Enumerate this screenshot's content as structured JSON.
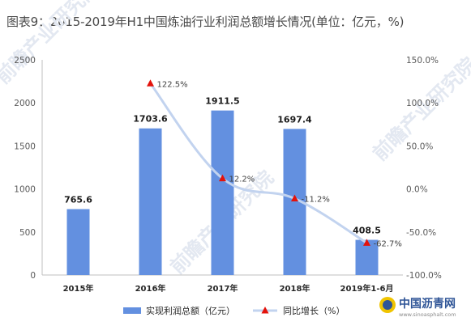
{
  "title": "图表9：2015-2019年H1中国炼油行业利润总额增长情况(单位：亿元，%)",
  "chart_data": {
    "type": "bar",
    "categories": [
      "2015年",
      "2016年",
      "2017年",
      "2018年",
      "2019年1-6月"
    ],
    "series": [
      {
        "name": "实现利润总额（亿元）",
        "type": "bar",
        "axis": "left",
        "values": [
          765.6,
          1703.6,
          1911.5,
          1697.4,
          408.5
        ],
        "labels": [
          "765.6",
          "1703.6",
          "1911.5",
          "1697.4",
          "408.5"
        ],
        "color": "#6390e0"
      },
      {
        "name": "同比增长（%）",
        "type": "line",
        "axis": "right",
        "values": [
          null,
          122.5,
          12.2,
          -11.2,
          -62.7
        ],
        "labels": [
          "",
          "122.5%",
          "12.2%",
          "-11.2%",
          "-62.7%"
        ],
        "color": "#c2d3ef",
        "marker_color": "#e3120b"
      }
    ],
    "left_axis": {
      "min": 0,
      "max": 2500,
      "ticks": [
        0,
        500,
        1000,
        1500,
        2000,
        2500
      ]
    },
    "right_axis": {
      "min": -100,
      "max": 150,
      "ticks": [
        "-100.0%",
        "-50.0%",
        "0.0%",
        "50.0%",
        "100.0%",
        "150.0%"
      ],
      "tick_values": [
        -100,
        -50,
        0,
        50,
        100,
        150
      ]
    },
    "grid": false,
    "legend_position": "bottom"
  },
  "watermark": "前瞻产业研究院",
  "logo": {
    "name": "中国沥青网",
    "url": "www.sinoasphalt.com"
  }
}
